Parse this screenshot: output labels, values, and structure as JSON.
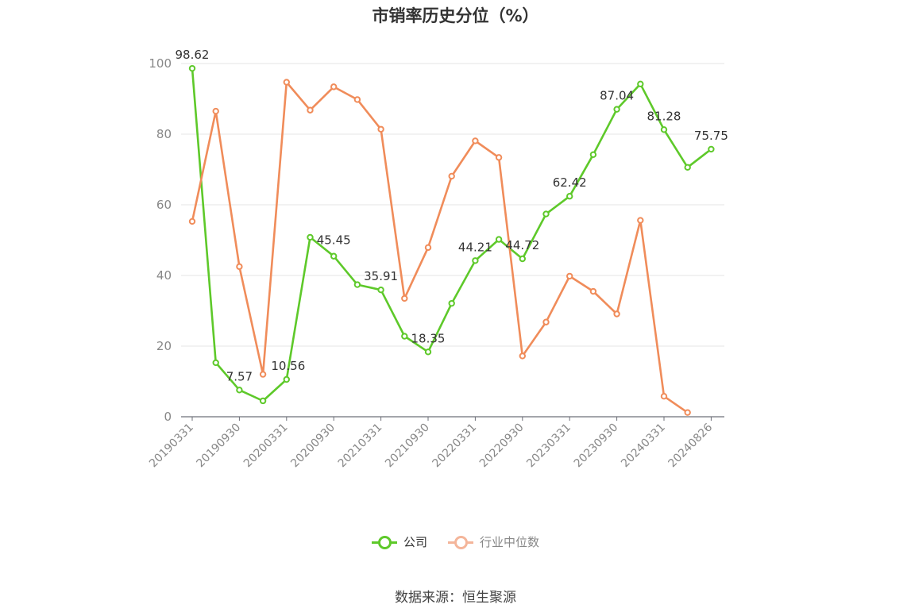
{
  "chart_data": {
    "type": "line",
    "title": "市销率历史分位（%）",
    "x_tick_labels": [
      "20190331",
      "20190930",
      "20200331",
      "20200930",
      "20210331",
      "20210930",
      "20220331",
      "20220930",
      "20230331",
      "20230930",
      "20240331",
      "20240826"
    ],
    "y_ticks": [
      0,
      20,
      40,
      60,
      80,
      100
    ],
    "ylim": [
      0,
      100
    ],
    "grid": "horizontal",
    "legend_position": "bottom-center",
    "series": [
      {
        "name": "公司",
        "color": "#5ec92a",
        "values": [
          98.62,
          15.3,
          7.57,
          4.5,
          10.56,
          50.8,
          45.45,
          37.4,
          35.91,
          22.8,
          18.35,
          32.1,
          44.21,
          50.2,
          44.72,
          57.4,
          62.42,
          74.2,
          87.04,
          94.2,
          81.28,
          70.6,
          75.75
        ],
        "data_labels": {
          "0": "98.62",
          "2": "7.57",
          "4": "10.56",
          "6": "45.45",
          "8": "35.91",
          "10": "18.35",
          "12": "44.21",
          "14": "44.72",
          "16": "62.42",
          "18": "87.04",
          "20": "81.28",
          "22": "75.75"
        }
      },
      {
        "name": "行业中位数",
        "color": "#f08c5a",
        "values": [
          55.3,
          86.5,
          42.5,
          12.0,
          94.7,
          86.8,
          93.4,
          89.8,
          81.4,
          33.5,
          47.9,
          68.1,
          78.1,
          73.4,
          17.2,
          26.8,
          39.8,
          35.5,
          29.1,
          55.6,
          5.8,
          1.2,
          null
        ]
      }
    ]
  },
  "legend": {
    "company_label": "公司",
    "industry_label": "行业中位数",
    "company_color": "#5ec92a",
    "industry_color": "#f4b59a"
  },
  "source": "数据来源：恒生聚源"
}
